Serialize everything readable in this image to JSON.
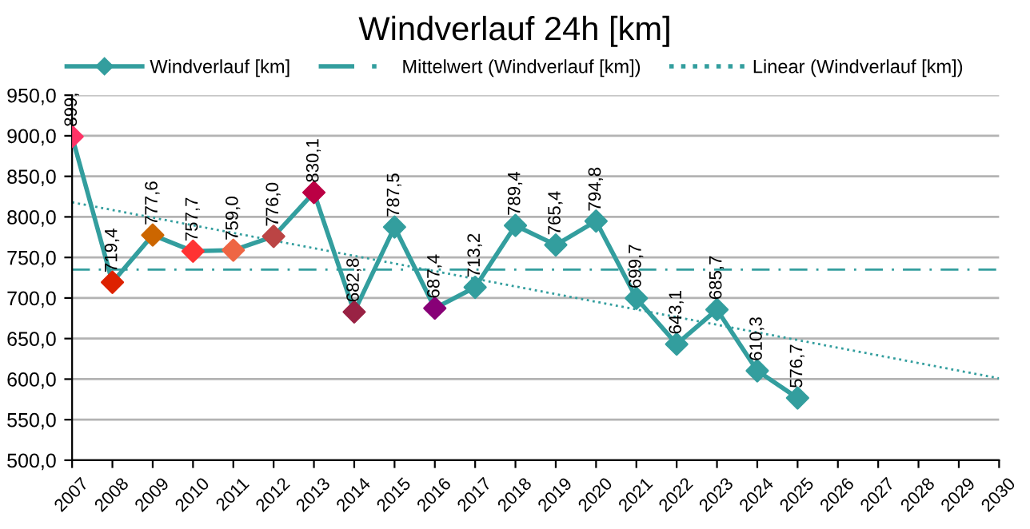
{
  "chart_data": {
    "type": "line",
    "title": "Windverlauf 24h [km]",
    "x": [
      2007,
      2008,
      2009,
      2010,
      2011,
      2012,
      2013,
      2014,
      2015,
      2016,
      2017,
      2018,
      2019,
      2020,
      2021,
      2022,
      2023,
      2024,
      2025
    ],
    "series": [
      {
        "name": "Windverlauf [km]",
        "color": "#339e9e",
        "marker": "diamond",
        "line_style": "solid",
        "values": [
          899,
          719.4,
          777.6,
          757.7,
          759.0,
          776.0,
          830.1,
          682.8,
          787.5,
          687.4,
          713.2,
          789.4,
          765.4,
          794.8,
          699.7,
          643.1,
          685.7,
          610.3,
          576.7
        ],
        "value_labels": [
          "899,",
          "719,4",
          "777,6",
          "757,7",
          "759,0",
          "776,0",
          "830,1",
          "682,8",
          "787,5",
          "687,4",
          "713,2",
          "789,4",
          "765,4",
          "794,8",
          "699,7",
          "643,1",
          "685,7",
          "610,3",
          "576,7"
        ],
        "colors": [
          "#ff3366",
          "#dd2200",
          "#cc6600",
          "#ff3333",
          "#ee6644",
          "#bb4444",
          "#bb0044",
          "#992244",
          "#339e9e",
          "#880077",
          "#339e9e",
          "#339e9e",
          "#339e9e",
          "#339e9e",
          "#339e9e",
          "#339e9e",
          "#339e9e",
          "#339e9e",
          "#339e9e"
        ]
      },
      {
        "name": "Linear (Windverlauf [km])",
        "type": "line",
        "color": "#339e9e",
        "line_style": "dotted",
        "marker": "none",
        "x": [
          2007,
          2030
        ],
        "values": [
          818,
          601
        ]
      }
    ],
    "ref_lines": [
      {
        "axis": "y",
        "value": 735,
        "label": "Mittelwert (Windverlauf [km])",
        "color": "#339e9e",
        "line_style": "dashdot"
      }
    ],
    "xlim": [
      2007,
      2030
    ],
    "xticks": [
      2007,
      2008,
      2009,
      2010,
      2011,
      2012,
      2013,
      2014,
      2015,
      2016,
      2017,
      2018,
      2019,
      2020,
      2021,
      2022,
      2023,
      2024,
      2025,
      2026,
      2027,
      2028,
      2029,
      2030
    ],
    "ylim": [
      500,
      950
    ],
    "yticks": [
      {
        "value": 500,
        "label": "500,0"
      },
      {
        "value": 550,
        "label": "550,0"
      },
      {
        "value": 600,
        "label": "600,0"
      },
      {
        "value": 650,
        "label": "650,0"
      },
      {
        "value": 700,
        "label": "700,0"
      },
      {
        "value": 750,
        "label": "750,0"
      },
      {
        "value": 800,
        "label": "800,0"
      },
      {
        "value": 850,
        "label": "850,0"
      },
      {
        "value": 900,
        "label": "900,0"
      },
      {
        "value": 950,
        "label": "950,0"
      }
    ],
    "grid": "y",
    "legend": "top"
  }
}
